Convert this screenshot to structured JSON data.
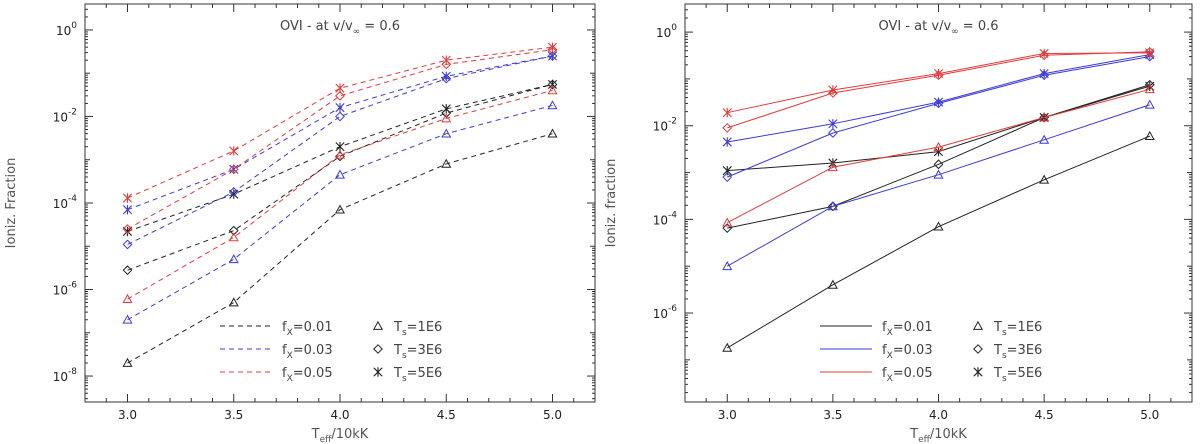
{
  "chart_data": [
    {
      "type": "line",
      "style": "dashed",
      "title_prefix": "OVI  -  at v/v",
      "title_inf": "∞",
      "title_suffix": "= 0.6",
      "xlabel_main": "T",
      "xlabel_sub": "eff",
      "xlabel_rest": "/10kK",
      "ylabel": "Ioniz. Fraction",
      "xlim": [
        2.8,
        5.2
      ],
      "ylim_log10": [
        -8.6,
        0.6
      ],
      "x_ticks": [
        "3.0",
        "3.5",
        "4.0",
        "4.5",
        "5.0"
      ],
      "y_tick_exponents": [
        0,
        -2,
        -4,
        -6,
        -8
      ],
      "x": [
        3.0,
        3.5,
        4.0,
        4.5,
        5.0
      ],
      "legend": {
        "lines": [
          {
            "prefix": "f",
            "sub": "X",
            "text": "=0.01",
            "color": "#222222"
          },
          {
            "prefix": "f",
            "sub": "X",
            "text": "=0.03",
            "color": "#3b3bd6"
          },
          {
            "prefix": "f",
            "sub": "X",
            "text": "=0.05",
            "color": "#e23b3b"
          }
        ],
        "markers": [
          {
            "prefix": "T",
            "sub": "s",
            "text": "=1E6",
            "marker": "triangle"
          },
          {
            "prefix": "T",
            "sub": "s",
            "text": "=3E6",
            "marker": "diamond"
          },
          {
            "prefix": "T",
            "sub": "s",
            "text": "=5E6",
            "marker": "star"
          }
        ]
      },
      "series": [
        {
          "name": "fX=0.01, Ts=1E6",
          "color": "#222222",
          "marker": "triangle",
          "values": [
            2e-08,
            5e-07,
            7e-05,
            0.0008,
            0.004
          ]
        },
        {
          "name": "fX=0.01, Ts=3E6",
          "color": "#222222",
          "marker": "diamond",
          "values": [
            2.8e-06,
            2.3e-05,
            0.0012,
            0.012,
            0.055
          ]
        },
        {
          "name": "fX=0.01, Ts=5E6",
          "color": "#222222",
          "marker": "star",
          "values": [
            2.2e-05,
            0.00016,
            0.002,
            0.015,
            0.055
          ]
        },
        {
          "name": "fX=0.03, Ts=1E6",
          "color": "#3b3bd6",
          "marker": "triangle",
          "values": [
            2e-07,
            5e-06,
            0.00045,
            0.004,
            0.018
          ]
        },
        {
          "name": "fX=0.03, Ts=3E6",
          "color": "#3b3bd6",
          "marker": "diamond",
          "values": [
            1.1e-05,
            0.00018,
            0.01,
            0.075,
            0.25
          ]
        },
        {
          "name": "fX=0.03, Ts=5E6",
          "color": "#3b3bd6",
          "marker": "star",
          "values": [
            7e-05,
            0.0006,
            0.016,
            0.085,
            0.25
          ]
        },
        {
          "name": "fX=0.05, Ts=1E6",
          "color": "#e23b3b",
          "marker": "triangle",
          "values": [
            6e-07,
            1.6e-05,
            0.0013,
            0.009,
            0.04
          ]
        },
        {
          "name": "fX=0.05, Ts=3E6",
          "color": "#e23b3b",
          "marker": "diamond",
          "values": [
            2.5e-05,
            0.0006,
            0.03,
            0.16,
            0.35
          ]
        },
        {
          "name": "fX=0.05, Ts=5E6",
          "color": "#e23b3b",
          "marker": "star",
          "values": [
            0.00013,
            0.0016,
            0.045,
            0.2,
            0.4
          ]
        }
      ]
    },
    {
      "type": "line",
      "style": "solid",
      "title_prefix": "OVI  -  at v/v",
      "title_inf": "∞",
      "title_suffix": "= 0.6",
      "xlabel_main": "T",
      "xlabel_sub": "eff",
      "xlabel_rest": "/10kK",
      "ylabel": "Ioniz. fraction",
      "xlim": [
        2.8,
        5.2
      ],
      "ylim_log10": [
        -7.9,
        0.6
      ],
      "x_ticks": [
        "3.0",
        "3.5",
        "4.0",
        "4.5",
        "5.0"
      ],
      "y_tick_exponents": [
        0,
        -2,
        -4,
        -6
      ],
      "x": [
        3.0,
        3.5,
        4.0,
        4.5,
        5.0
      ],
      "legend": {
        "lines": [
          {
            "prefix": "f",
            "sub": "X",
            "text": "=0.01",
            "color": "#222222"
          },
          {
            "prefix": "f",
            "sub": "X",
            "text": "=0.03",
            "color": "#3b3bd6"
          },
          {
            "prefix": "f",
            "sub": "X",
            "text": "=0.05",
            "color": "#e23b3b"
          }
        ],
        "markers": [
          {
            "prefix": "T",
            "sub": "s",
            "text": "=1E6",
            "marker": "triangle"
          },
          {
            "prefix": "T",
            "sub": "s",
            "text": "=3E6",
            "marker": "diamond"
          },
          {
            "prefix": "T",
            "sub": "s",
            "text": "=5E6",
            "marker": "star"
          }
        ]
      },
      "series": [
        {
          "name": "fX=0.01, Ts=1E6",
          "color": "#222222",
          "marker": "triangle",
          "values": [
            1.8e-07,
            4e-06,
            7e-05,
            0.0007,
            0.006
          ]
        },
        {
          "name": "fX=0.01, Ts=3E6",
          "color": "#222222",
          "marker": "diamond",
          "values": [
            6.5e-05,
            0.00019,
            0.0015,
            0.015,
            0.075
          ]
        },
        {
          "name": "fX=0.01, Ts=5E6",
          "color": "#222222",
          "marker": "star",
          "values": [
            0.0011,
            0.0016,
            0.0028,
            0.015,
            0.07
          ]
        },
        {
          "name": "fX=0.03, Ts=1E6",
          "color": "#3b3bd6",
          "marker": "triangle",
          "values": [
            1e-05,
            0.00019,
            0.0009,
            0.005,
            0.028
          ]
        },
        {
          "name": "fX=0.03, Ts=3E6",
          "color": "#3b3bd6",
          "marker": "diamond",
          "values": [
            0.0008,
            0.007,
            0.03,
            0.12,
            0.3
          ]
        },
        {
          "name": "fX=0.03, Ts=5E6",
          "color": "#3b3bd6",
          "marker": "star",
          "values": [
            0.0045,
            0.011,
            0.032,
            0.13,
            0.33
          ]
        },
        {
          "name": "fX=0.05, Ts=1E6",
          "color": "#e23b3b",
          "marker": "triangle",
          "values": [
            8.5e-05,
            0.0013,
            0.0035,
            0.015,
            0.06
          ]
        },
        {
          "name": "fX=0.05, Ts=3E6",
          "color": "#e23b3b",
          "marker": "diamond",
          "values": [
            0.009,
            0.05,
            0.12,
            0.32,
            0.38
          ]
        },
        {
          "name": "fX=0.05, Ts=5E6",
          "color": "#e23b3b",
          "marker": "star",
          "values": [
            0.019,
            0.058,
            0.13,
            0.35,
            0.36
          ]
        }
      ]
    }
  ]
}
